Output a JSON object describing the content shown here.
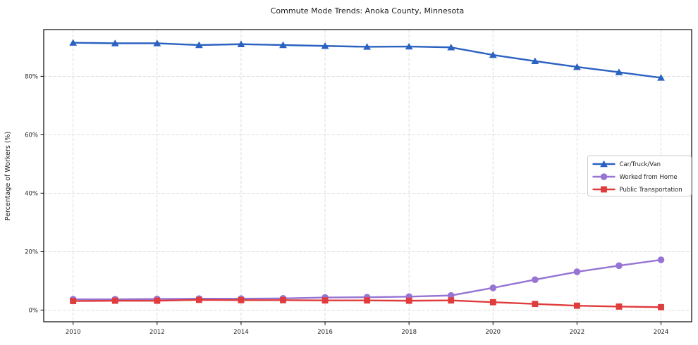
{
  "figure": {
    "title": "Commute Mode Trends: Anoka County, Minnesota",
    "ylabel": "Percentage of Workers (%)"
  },
  "chart_data": {
    "type": "line",
    "title": "Commute Mode Trends: Anoka County, Minnesota",
    "xlabel": "",
    "ylabel": "Percentage of Workers (%)",
    "x": [
      2010,
      2011,
      2012,
      2013,
      2014,
      2015,
      2016,
      2017,
      2018,
      2019,
      2020,
      2021,
      2022,
      2023,
      2024
    ],
    "series": [
      {
        "name": "Car/Truck/Van",
        "marker": "triangle",
        "color": "#2b62c1",
        "values": [
          91.5,
          91.3,
          91.3,
          90.7,
          91.0,
          90.7,
          90.4,
          90.1,
          90.2,
          89.9,
          87.3,
          85.2,
          83.2,
          81.4,
          79.5
        ]
      },
      {
        "name": "Worked from Home",
        "marker": "circle",
        "color": "#9674d4",
        "values": [
          3.7,
          3.7,
          3.8,
          3.9,
          3.9,
          4.0,
          4.3,
          4.4,
          4.6,
          5.0,
          7.6,
          10.4,
          13.1,
          15.2,
          17.2
        ]
      },
      {
        "name": "Public Transportation",
        "marker": "square",
        "color": "#e03c3c",
        "values": [
          3.1,
          3.2,
          3.2,
          3.5,
          3.4,
          3.4,
          3.3,
          3.3,
          3.2,
          3.3,
          2.7,
          2.1,
          1.5,
          1.2,
          1.0
        ]
      }
    ],
    "xticks": [
      2010,
      2012,
      2014,
      2016,
      2018,
      2020,
      2022,
      2024
    ],
    "yticks": [
      0,
      20,
      40,
      60,
      80
    ],
    "ytick_suffix": "%",
    "xlim": [
      2009.3,
      2024.73
    ],
    "ylim": [
      -4,
      96
    ],
    "grid": true,
    "grid_style": "dashed",
    "legend_position": "center-right",
    "colors": {
      "grid": "#d9d9d9",
      "spine": "#1a1a1a",
      "text": "#262626",
      "legend_border": "#cccccc",
      "background": "#ffffff"
    }
  }
}
